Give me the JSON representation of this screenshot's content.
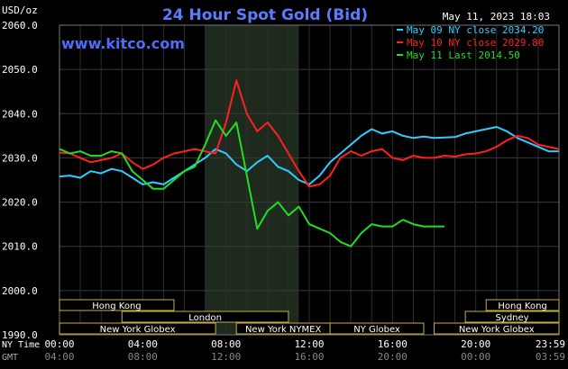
{
  "chart_data": {
    "type": "line",
    "title": "24 Hour Spot Gold (Bid)",
    "unit_label": "USD/oz",
    "watermark": "www.kitco.com",
    "timestamp": "May 11, 2023 18:03",
    "ylim": [
      1990,
      2060
    ],
    "xlim": [
      0,
      24
    ],
    "y_ticks": [
      "2060.0",
      "2050.0",
      "2040.0",
      "2030.0",
      "2020.0",
      "2010.0",
      "2000.0",
      "1990.0"
    ],
    "y_tick_values": [
      2060,
      2050,
      2040,
      2030,
      2020,
      2010,
      2000,
      1990
    ],
    "x_ticks_ny": [
      "00:00",
      "04:00",
      "08:00",
      "12:00",
      "16:00",
      "20:00",
      "23:59"
    ],
    "x_ticks_gmt": [
      "04:00",
      "08:00",
      "12:00",
      "16:00",
      "20:00",
      "00:00",
      "03:59"
    ],
    "x_tick_values": [
      0,
      4,
      8,
      12,
      16,
      20,
      23.98
    ],
    "x_label_ny": "NY Time",
    "x_label_gmt": "GMT",
    "highlight_range": [
      7,
      11.5
    ],
    "grid": true,
    "legend_position": "top-right",
    "series": [
      {
        "name": "May 09 NY close 2034.20",
        "color": "#33ccff",
        "x": [
          0,
          0.5,
          1,
          1.5,
          2,
          2.5,
          3,
          3.5,
          4,
          4.5,
          5,
          5.5,
          6,
          6.5,
          7,
          7.5,
          8,
          8.5,
          9,
          9.5,
          10,
          10.5,
          11,
          11.5,
          12,
          12.5,
          13,
          13.5,
          14,
          14.5,
          15,
          15.5,
          16,
          16.5,
          17,
          17.5,
          18,
          18.5,
          19,
          19.5,
          20,
          20.5,
          21,
          21.5,
          22,
          22.5,
          23,
          23.5,
          23.98
        ],
        "y": [
          2025.8,
          2026,
          2025.5,
          2027,
          2026.5,
          2027.5,
          2027,
          2025.5,
          2024,
          2024.5,
          2024,
          2025.5,
          2027,
          2028.5,
          2030,
          2032,
          2031,
          2028.5,
          2027,
          2029,
          2030.5,
          2028,
          2027,
          2025,
          2024,
          2026,
          2029,
          2031,
          2033,
          2035,
          2036.5,
          2035.5,
          2036,
          2035,
          2034.5,
          2034.8,
          2034.5,
          2034.6,
          2034.7,
          2035.5,
          2036,
          2036.5,
          2037,
          2036,
          2034.5,
          2033.5,
          2032.5,
          2031.5,
          2031.5
        ]
      },
      {
        "name": "May 10 NY close 2029.80",
        "color": "#ff2020",
        "x": [
          0,
          0.5,
          1,
          1.5,
          2,
          2.5,
          3,
          3.5,
          4,
          4.5,
          5,
          5.5,
          6,
          6.5,
          7,
          7.5,
          8,
          8.5,
          9,
          9.5,
          10,
          10.5,
          11,
          11.5,
          12,
          12.5,
          13,
          13.5,
          14,
          14.5,
          15,
          15.5,
          16,
          16.5,
          17,
          17.5,
          18,
          18.5,
          19,
          19.5,
          20,
          20.5,
          21,
          21.5,
          22,
          22.5,
          23,
          23.5,
          23.98
        ],
        "y": [
          2031.2,
          2031,
          2030,
          2029,
          2029.5,
          2030,
          2031,
          2029,
          2027.5,
          2028.5,
          2030,
          2031,
          2031.5,
          2032,
          2031.5,
          2031,
          2038,
          2047.5,
          2040,
          2036,
          2038,
          2035,
          2031,
          2027,
          2023.5,
          2024,
          2026,
          2030,
          2031.5,
          2030.5,
          2031.5,
          2032,
          2030,
          2029.5,
          2030.5,
          2030,
          2030,
          2030.5,
          2030.3,
          2030.8,
          2031,
          2031.5,
          2032.5,
          2034,
          2035,
          2034.5,
          2033,
          2032.5,
          2032
        ]
      },
      {
        "name": "May 11 Last 2014.50",
        "color": "#22dd22",
        "x": [
          0,
          0.5,
          1,
          1.5,
          2,
          2.5,
          3,
          3.5,
          4,
          4.5,
          5,
          5.5,
          6,
          6.5,
          7,
          7.5,
          8,
          8.5,
          9,
          9.5,
          10,
          10.5,
          11,
          11.5,
          12,
          12.5,
          13,
          13.5,
          14,
          14.5,
          15,
          15.5,
          16,
          16.5,
          17,
          17.5,
          18,
          18.5
        ],
        "y": [
          2032,
          2031,
          2031.5,
          2030.5,
          2030.5,
          2031.5,
          2031,
          2027,
          2025,
          2023,
          2023,
          2025,
          2027,
          2028,
          2033,
          2038.5,
          2035,
          2038,
          2026,
          2014,
          2018,
          2020,
          2017,
          2019,
          2015,
          2014,
          2013,
          2011,
          2010,
          2013,
          2015,
          2014.5,
          2014.5,
          2016,
          2015,
          2014.5,
          2014.5,
          2014.5
        ]
      }
    ],
    "sessions": [
      {
        "label": "Hong Kong",
        "start": 0,
        "end": 5.5,
        "row": 0
      },
      {
        "label": "London",
        "start": 3,
        "end": 11,
        "row": 1
      },
      {
        "label": "New York Globex",
        "start": 0,
        "end": 7.5,
        "row": 2
      },
      {
        "label": "New York NYMEX",
        "start": 8.5,
        "end": 13,
        "row": 2
      },
      {
        "label": "NY Globex",
        "start": 13,
        "end": 17.5,
        "row": 2
      },
      {
        "label": "Hong Kong",
        "start": 20.5,
        "end": 24,
        "row": 0
      },
      {
        "label": "Sydney",
        "start": 19.5,
        "end": 24,
        "row": 1
      },
      {
        "label": "New York Globex",
        "start": 18,
        "end": 24,
        "row": 2
      }
    ]
  }
}
